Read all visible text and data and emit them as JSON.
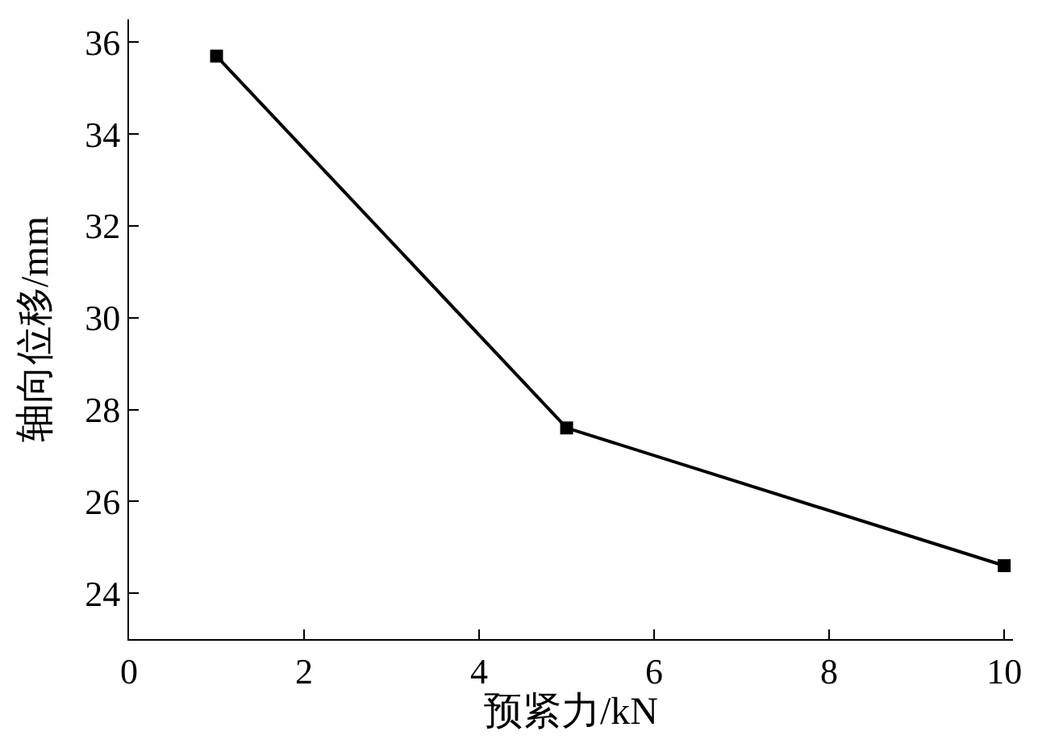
{
  "chart_data": {
    "type": "line",
    "xlabel": "预紧力/kN",
    "ylabel": "轴向位移/mm",
    "x": [
      1,
      5,
      10
    ],
    "series": [
      {
        "color": "#000000",
        "values": [
          35.7,
          27.6,
          24.6
        ]
      }
    ],
    "xlim": [
      0,
      10.1
    ],
    "xticks": [
      0,
      2,
      4,
      6,
      8,
      10
    ],
    "ylim": [
      23,
      36.5
    ],
    "yticks": [
      24,
      26,
      28,
      30,
      32,
      34,
      36
    ],
    "marker": "square",
    "line_style": "solid"
  }
}
